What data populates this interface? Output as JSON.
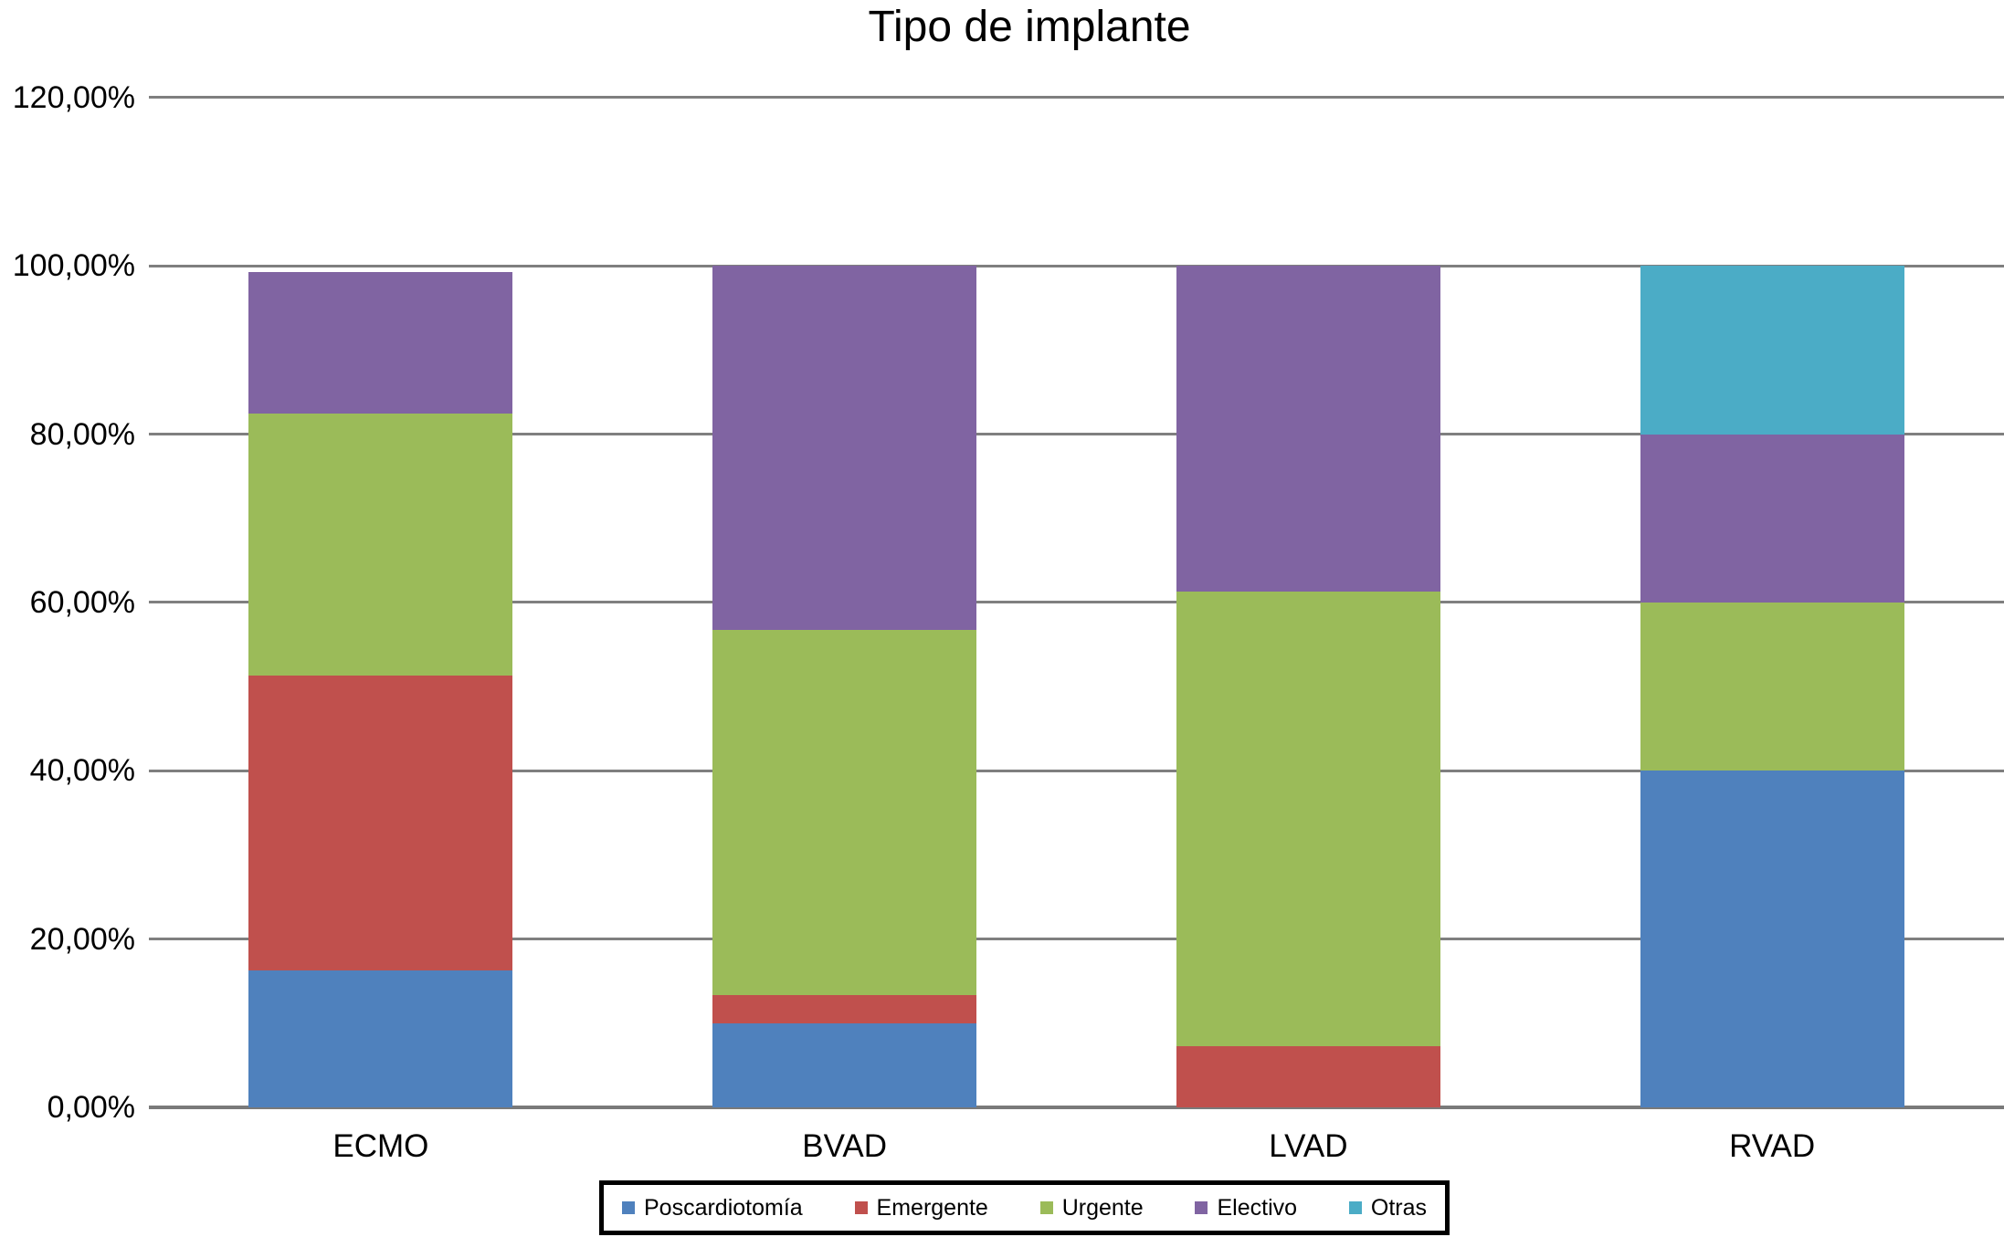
{
  "title": "Tipo de implante",
  "chart_data": {
    "type": "bar",
    "stacked": true,
    "units": "percent",
    "title": "Tipo de implante",
    "categories": [
      "ECMO",
      "BVAD",
      "LVAD",
      "RVAD"
    ],
    "series": [
      {
        "name": "Poscardiotomía",
        "color": "#4F81BD",
        "values": [
          16.3,
          10.0,
          0.0,
          40.0
        ]
      },
      {
        "name": "Emergente",
        "color": "#C0504D",
        "values": [
          35.0,
          3.3,
          7.3,
          0.0
        ]
      },
      {
        "name": "Urgente",
        "color": "#9BBB59",
        "values": [
          31.2,
          43.4,
          54.0,
          20.0
        ]
      },
      {
        "name": "Electivo",
        "color": "#8064A2",
        "values": [
          16.8,
          43.3,
          38.7,
          20.0
        ]
      },
      {
        "name": "Otras",
        "color": "#4BACC6",
        "values": [
          0.0,
          0.0,
          0.0,
          20.0
        ]
      }
    ],
    "y_axis": {
      "min": 0,
      "max": 120,
      "step": 20,
      "tick_labels": [
        "0,00%",
        "20,00%",
        "40,00%",
        "60,00%",
        "80,00%",
        "100,00%",
        "120,00%"
      ]
    },
    "x_axis": {
      "tick_labels": [
        "ECMO",
        "BVAD",
        "LVAD",
        "RVAD"
      ]
    },
    "grid": true,
    "legend_position": "bottom",
    "legend_labels": [
      "Poscardiotomía",
      "Emergente",
      "Urgente",
      "Electivo",
      "Otras"
    ]
  },
  "colors": {
    "background": "#FFFFFF",
    "grid_line": "#7F7F7F",
    "axis_line": "#7A7A7A",
    "text": "#000000",
    "legend_border": "#000000",
    "series_blue": "#4F81BD",
    "series_red": "#C0504D",
    "series_green": "#9BBB59",
    "series_purple": "#8064A2",
    "series_teal": "#4BACC6"
  }
}
